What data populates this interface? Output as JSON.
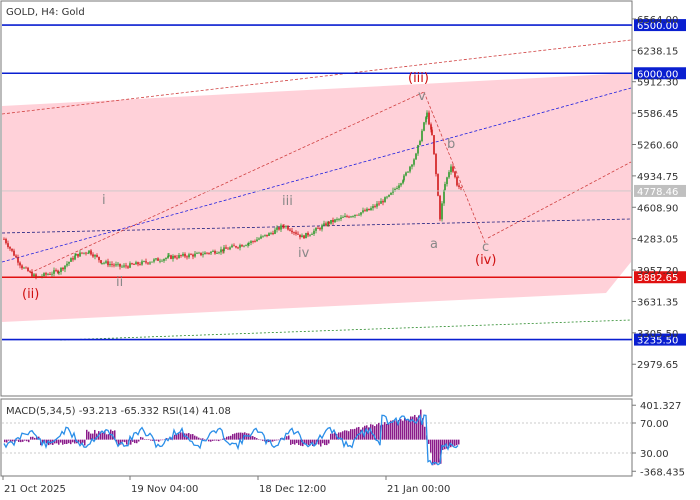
{
  "chart_data": [
    {
      "type": "candlestick",
      "title": "GOLD, H4:  Gold",
      "y_range": [
        2650,
        6750
      ],
      "y_ticks": [
        "6564.00",
        "6238.15",
        "5912.30",
        "5586.45",
        "5260.60",
        "4934.75",
        "4608.90",
        "4283.05",
        "3957.20",
        "3631.35",
        "3305.50",
        "2979.65"
      ],
      "x_labels": [
        "21 Oct 2025",
        "19 Nov 04:00",
        "18 Dec 12:00",
        "21 Jan 00:00"
      ],
      "current_price": "4778.46",
      "levels": [
        {
          "value": 6500.0,
          "label": "6500.00",
          "color": "#0a1fd0"
        },
        {
          "value": 6000.0,
          "label": "6000.00",
          "color": "#0a1fd0"
        },
        {
          "value": 3882.65,
          "label": "3882.65",
          "color": "#e01010"
        },
        {
          "value": 3235.5,
          "label": "3235.50",
          "color": "#0a1fd0"
        }
      ],
      "wave_labels": [
        {
          "text": "(ii)",
          "color": "#d01010"
        },
        {
          "text": "i",
          "color": "#888888"
        },
        {
          "text": "ii",
          "color": "#888888"
        },
        {
          "text": "iii",
          "color": "#888888"
        },
        {
          "text": "iv",
          "color": "#888888"
        },
        {
          "text": "(iii)",
          "color": "#d01010"
        },
        {
          "text": "v",
          "color": "#888888"
        },
        {
          "text": "a",
          "color": "#888888"
        },
        {
          "text": "b",
          "color": "#888888"
        },
        {
          "text": "c",
          "color": "#888888"
        },
        {
          "text": "(iv)",
          "color": "#d01010"
        }
      ],
      "series": [
        {
          "name": "price",
          "anchors": [
            [
              0,
              4280
            ],
            [
              18,
              3990
            ],
            [
              32,
              3880
            ],
            [
              55,
              3950
            ],
            [
              72,
              4110
            ],
            [
              85,
              4155
            ],
            [
              98,
              4040
            ],
            [
              118,
              3990
            ],
            [
              138,
              4030
            ],
            [
              165,
              4090
            ],
            [
              195,
              4120
            ],
            [
              220,
              4170
            ],
            [
              245,
              4240
            ],
            [
              265,
              4330
            ],
            [
              280,
              4420
            ],
            [
              290,
              4360
            ],
            [
              298,
              4300
            ],
            [
              308,
              4350
            ],
            [
              325,
              4450
            ],
            [
              345,
              4520
            ],
            [
              365,
              4580
            ],
            [
              385,
              4720
            ],
            [
              400,
              4920
            ],
            [
              412,
              5150
            ],
            [
              418,
              5400
            ],
            [
              423,
              5580
            ],
            [
              428,
              5350
            ],
            [
              432,
              4950
            ],
            [
              436,
              4500
            ],
            [
              441,
              4850
            ],
            [
              447,
              5050
            ],
            [
              453,
              4850
            ],
            [
              458,
              4778
            ]
          ]
        }
      ]
    },
    {
      "type": "indicator",
      "label": "MACD(5,34,5) -93.213 -65.332 RSI(14) 41.08",
      "y_ticks": [
        "401.327",
        "70.00",
        "30.00",
        "-368.435"
      ],
      "series": [
        {
          "name": "MACD(5,34,5)"
        },
        {
          "name": "RSI(14)"
        }
      ]
    }
  ]
}
